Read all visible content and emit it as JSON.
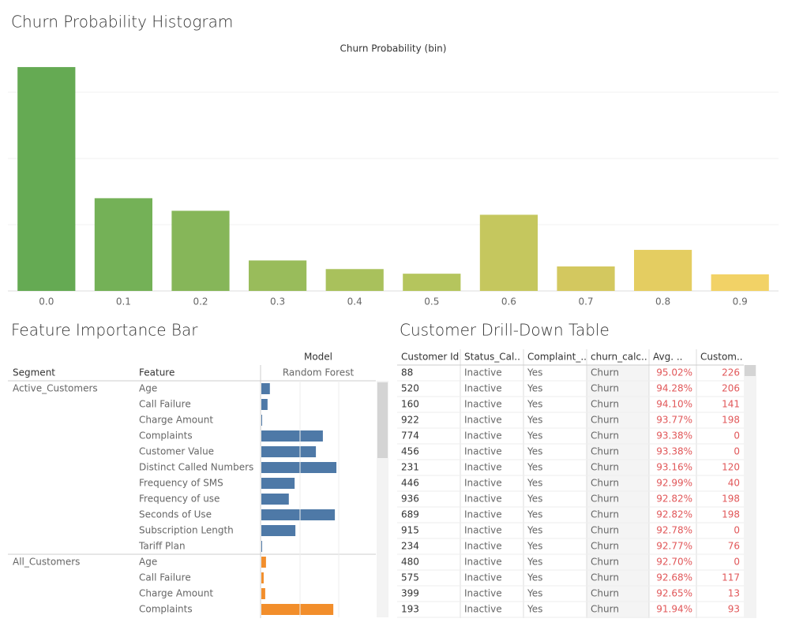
{
  "chart_data": [
    {
      "type": "bar",
      "title": "Churn Probability Histogram",
      "x_label": "Churn Probability (bin)",
      "categories": [
        "0.0",
        "0.1",
        "0.2",
        "0.3",
        "0.4",
        "0.5",
        "0.6",
        "0.7",
        "0.8",
        "0.9"
      ],
      "values": [
        3.38,
        1.4,
        1.21,
        0.46,
        0.33,
        0.26,
        1.15,
        0.37,
        0.62,
        0.25
      ],
      "colors": [
        "#65aa53",
        "#74b157",
        "#86b659",
        "#99bc5b",
        "#a9c15c",
        "#b5c55d",
        "#c5c75e",
        "#d3c85f",
        "#e4cd61",
        "#f2d266"
      ],
      "ylim": [
        0,
        3.5
      ],
      "yticks": [
        0,
        1,
        2,
        3
      ],
      "grid": true
    },
    {
      "type": "hbar",
      "title": "Feature Importance Bar",
      "column_headers": [
        "Segment",
        "Feature"
      ],
      "model_header": "Model",
      "model": "Random Forest",
      "xlim": [
        0,
        0.3
      ],
      "xticks": [
        0,
        0.1,
        0.2
      ],
      "grid": true,
      "series": [
        {
          "name": "Active_Customers",
          "color": "#4e79a7",
          "categories": [
            "Age",
            "Call Failure",
            "Charge Amount",
            "Complaints",
            "Customer Value",
            "Distinct Called Numbers",
            "Frequency of SMS",
            "Frequency of use",
            "Seconds of Use",
            "Subscription Length",
            "Tariff Plan"
          ],
          "values": [
            0.022,
            0.016,
            0.002,
            0.159,
            0.141,
            0.194,
            0.086,
            0.071,
            0.19,
            0.088,
            0.002
          ]
        },
        {
          "name": "All_Customers",
          "color": "#f28e2b",
          "categories": [
            "Age",
            "Call Failure",
            "Charge Amount",
            "Complaints"
          ],
          "values": [
            0.012,
            0.006,
            0.01,
            0.186
          ]
        }
      ]
    }
  ],
  "table": {
    "title": "Customer Drill-Down Table",
    "headers": [
      "Customer Id",
      "Status_Cal..",
      "Complaint_..",
      "churn_calc..",
      "Avg. ..",
      "Custom.."
    ],
    "rows": [
      [
        "88",
        "Inactive",
        "Yes",
        "Churn",
        "95.02%",
        "226"
      ],
      [
        "520",
        "Inactive",
        "Yes",
        "Churn",
        "94.28%",
        "206"
      ],
      [
        "160",
        "Inactive",
        "Yes",
        "Churn",
        "94.10%",
        "141"
      ],
      [
        "922",
        "Inactive",
        "Yes",
        "Churn",
        "93.77%",
        "198"
      ],
      [
        "774",
        "Inactive",
        "Yes",
        "Churn",
        "93.38%",
        "0"
      ],
      [
        "456",
        "Inactive",
        "Yes",
        "Churn",
        "93.38%",
        "0"
      ],
      [
        "231",
        "Inactive",
        "Yes",
        "Churn",
        "93.16%",
        "120"
      ],
      [
        "446",
        "Inactive",
        "Yes",
        "Churn",
        "92.99%",
        "40"
      ],
      [
        "936",
        "Inactive",
        "Yes",
        "Churn",
        "92.82%",
        "198"
      ],
      [
        "689",
        "Inactive",
        "Yes",
        "Churn",
        "92.82%",
        "198"
      ],
      [
        "915",
        "Inactive",
        "Yes",
        "Churn",
        "92.78%",
        "0"
      ],
      [
        "234",
        "Inactive",
        "Yes",
        "Churn",
        "92.77%",
        "76"
      ],
      [
        "480",
        "Inactive",
        "Yes",
        "Churn",
        "92.70%",
        "0"
      ],
      [
        "575",
        "Inactive",
        "Yes",
        "Churn",
        "92.68%",
        "117"
      ],
      [
        "399",
        "Inactive",
        "Yes",
        "Churn",
        "92.65%",
        "13"
      ],
      [
        "193",
        "Inactive",
        "Yes",
        "Churn",
        "91.94%",
        "93"
      ]
    ]
  }
}
